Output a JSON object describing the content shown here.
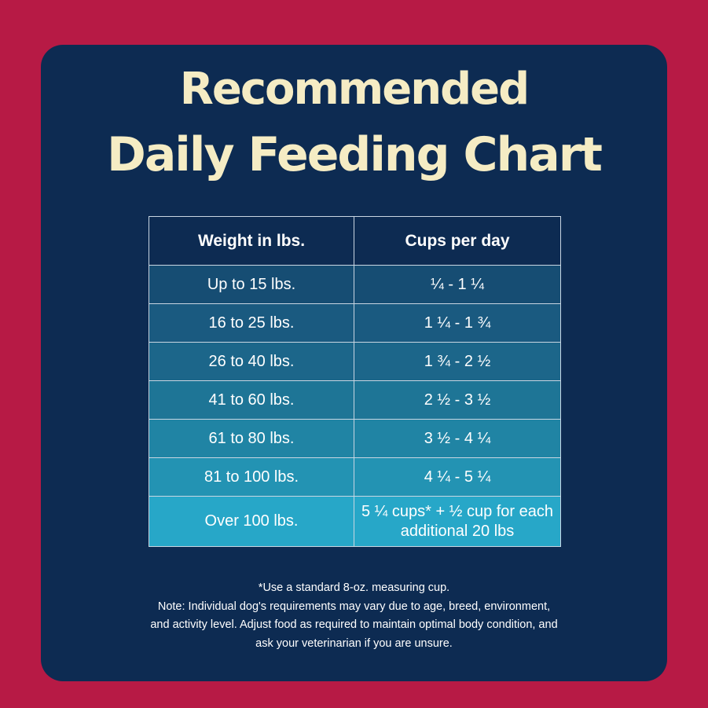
{
  "title": {
    "line1": "Recommended",
    "line2": "Daily Feeding Chart"
  },
  "table": {
    "headers": [
      "Weight in lbs.",
      "Cups per day"
    ],
    "rows": [
      {
        "weight": "Up to 15 lbs.",
        "cups": "¼ - 1 ¼",
        "color": "#164d73"
      },
      {
        "weight": "16 to 25 lbs.",
        "cups": "1 ¼ - 1 ¾",
        "color": "#1a5a80"
      },
      {
        "weight": "26 to 40 lbs.",
        "cups": "1 ¾ - 2 ½",
        "color": "#1c668a"
      },
      {
        "weight": "41 to 60 lbs.",
        "cups": "2 ½ - 3 ½",
        "color": "#1e7596"
      },
      {
        "weight": "61 to 80 lbs.",
        "cups": "3 ½ - 4 ¼",
        "color": "#2084a4"
      },
      {
        "weight": "81 to 100 lbs.",
        "cups": "4 ¼ - 5 ¼",
        "color": "#2393b3"
      },
      {
        "weight": "Over 100 lbs.",
        "cups_line1": "5 ¼ cups* + ½ cup for each",
        "cups_line2": "additional 20 lbs",
        "color": "#27a7c8"
      }
    ]
  },
  "notes": {
    "line1": "*Use a standard 8-oz. measuring cup.",
    "line2": "Note: Individual dog's requirements may vary due to age, breed, environment,",
    "line3": "and activity level. Adjust food as required to maintain optimal body condition, and",
    "line4": "ask your veterinarian if you are unsure."
  },
  "colors": {
    "background": "#b71a45",
    "card": "#0d2b52",
    "title": "#f5ecc4",
    "border": "#c9d6e2"
  }
}
